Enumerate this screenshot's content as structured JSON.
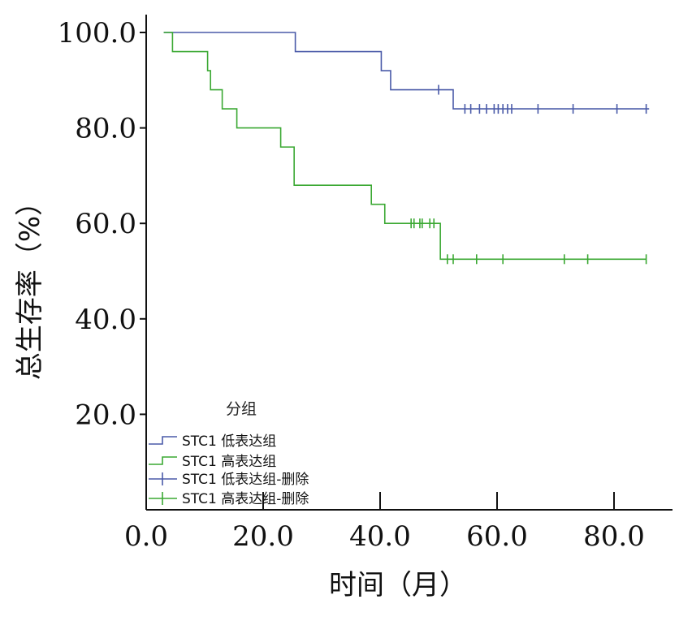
{
  "chart_data": {
    "type": "line",
    "subtype": "kaplan-meier",
    "xlabel": "时间（月）",
    "ylabel": "总生存率（%）",
    "xlim": [
      0,
      90
    ],
    "ylim": [
      0,
      100
    ],
    "x_ticks": [
      "0.0",
      "20.0",
      "40.0",
      "60.0",
      "80.0"
    ],
    "x_tick_values": [
      0,
      20,
      40,
      60,
      80
    ],
    "y_ticks": [
      "20.0",
      "40.0",
      "60.0",
      "80.0",
      "100.0"
    ],
    "y_tick_values": [
      20,
      40,
      60,
      80,
      100
    ],
    "legend": {
      "title": "分组",
      "position": "bottom-left",
      "entries": [
        "STC1 低表达组",
        "STC1 高表达组",
        "STC1 低表达组-删除",
        "STC1 高表达组-删除"
      ]
    },
    "series": [
      {
        "name": "STC1 低表达组",
        "color": "#4a5aa8",
        "steps": [
          [
            3,
            100
          ],
          [
            25.5,
            96
          ],
          [
            40.2,
            92
          ],
          [
            41.8,
            88
          ],
          [
            52.5,
            84
          ],
          [
            86,
            84
          ]
        ],
        "censored_name": "STC1 低表达组-删除",
        "censored": [
          [
            50,
            88
          ],
          [
            54.5,
            84
          ],
          [
            55.5,
            84
          ],
          [
            57,
            84
          ],
          [
            58.2,
            84
          ],
          [
            59.5,
            84
          ],
          [
            60.2,
            84
          ],
          [
            61,
            84
          ],
          [
            61.8,
            84
          ],
          [
            62.5,
            84
          ],
          [
            67,
            84
          ],
          [
            73,
            84
          ],
          [
            80.5,
            84
          ],
          [
            85.5,
            84
          ]
        ]
      },
      {
        "name": "STC1 高表达组",
        "color": "#3aa832",
        "steps": [
          [
            3,
            100
          ],
          [
            4.5,
            96
          ],
          [
            10.5,
            92
          ],
          [
            11,
            88
          ],
          [
            13,
            84
          ],
          [
            15.5,
            80
          ],
          [
            23,
            76
          ],
          [
            25.3,
            68
          ],
          [
            38.5,
            64
          ],
          [
            40.8,
            60
          ],
          [
            50.3,
            52.5
          ],
          [
            85.5,
            52.5
          ]
        ],
        "censored_name": "STC1 高表达组-删除",
        "censored": [
          [
            45.3,
            60
          ],
          [
            45.8,
            60
          ],
          [
            46.8,
            60
          ],
          [
            47.2,
            60
          ],
          [
            48.5,
            60
          ],
          [
            49.2,
            60
          ],
          [
            51.5,
            52.5
          ],
          [
            52.5,
            52.5
          ],
          [
            56.5,
            52.5
          ],
          [
            61,
            52.5
          ],
          [
            71.5,
            52.5
          ],
          [
            75.5,
            52.5
          ],
          [
            85.5,
            52.5
          ]
        ]
      }
    ]
  }
}
